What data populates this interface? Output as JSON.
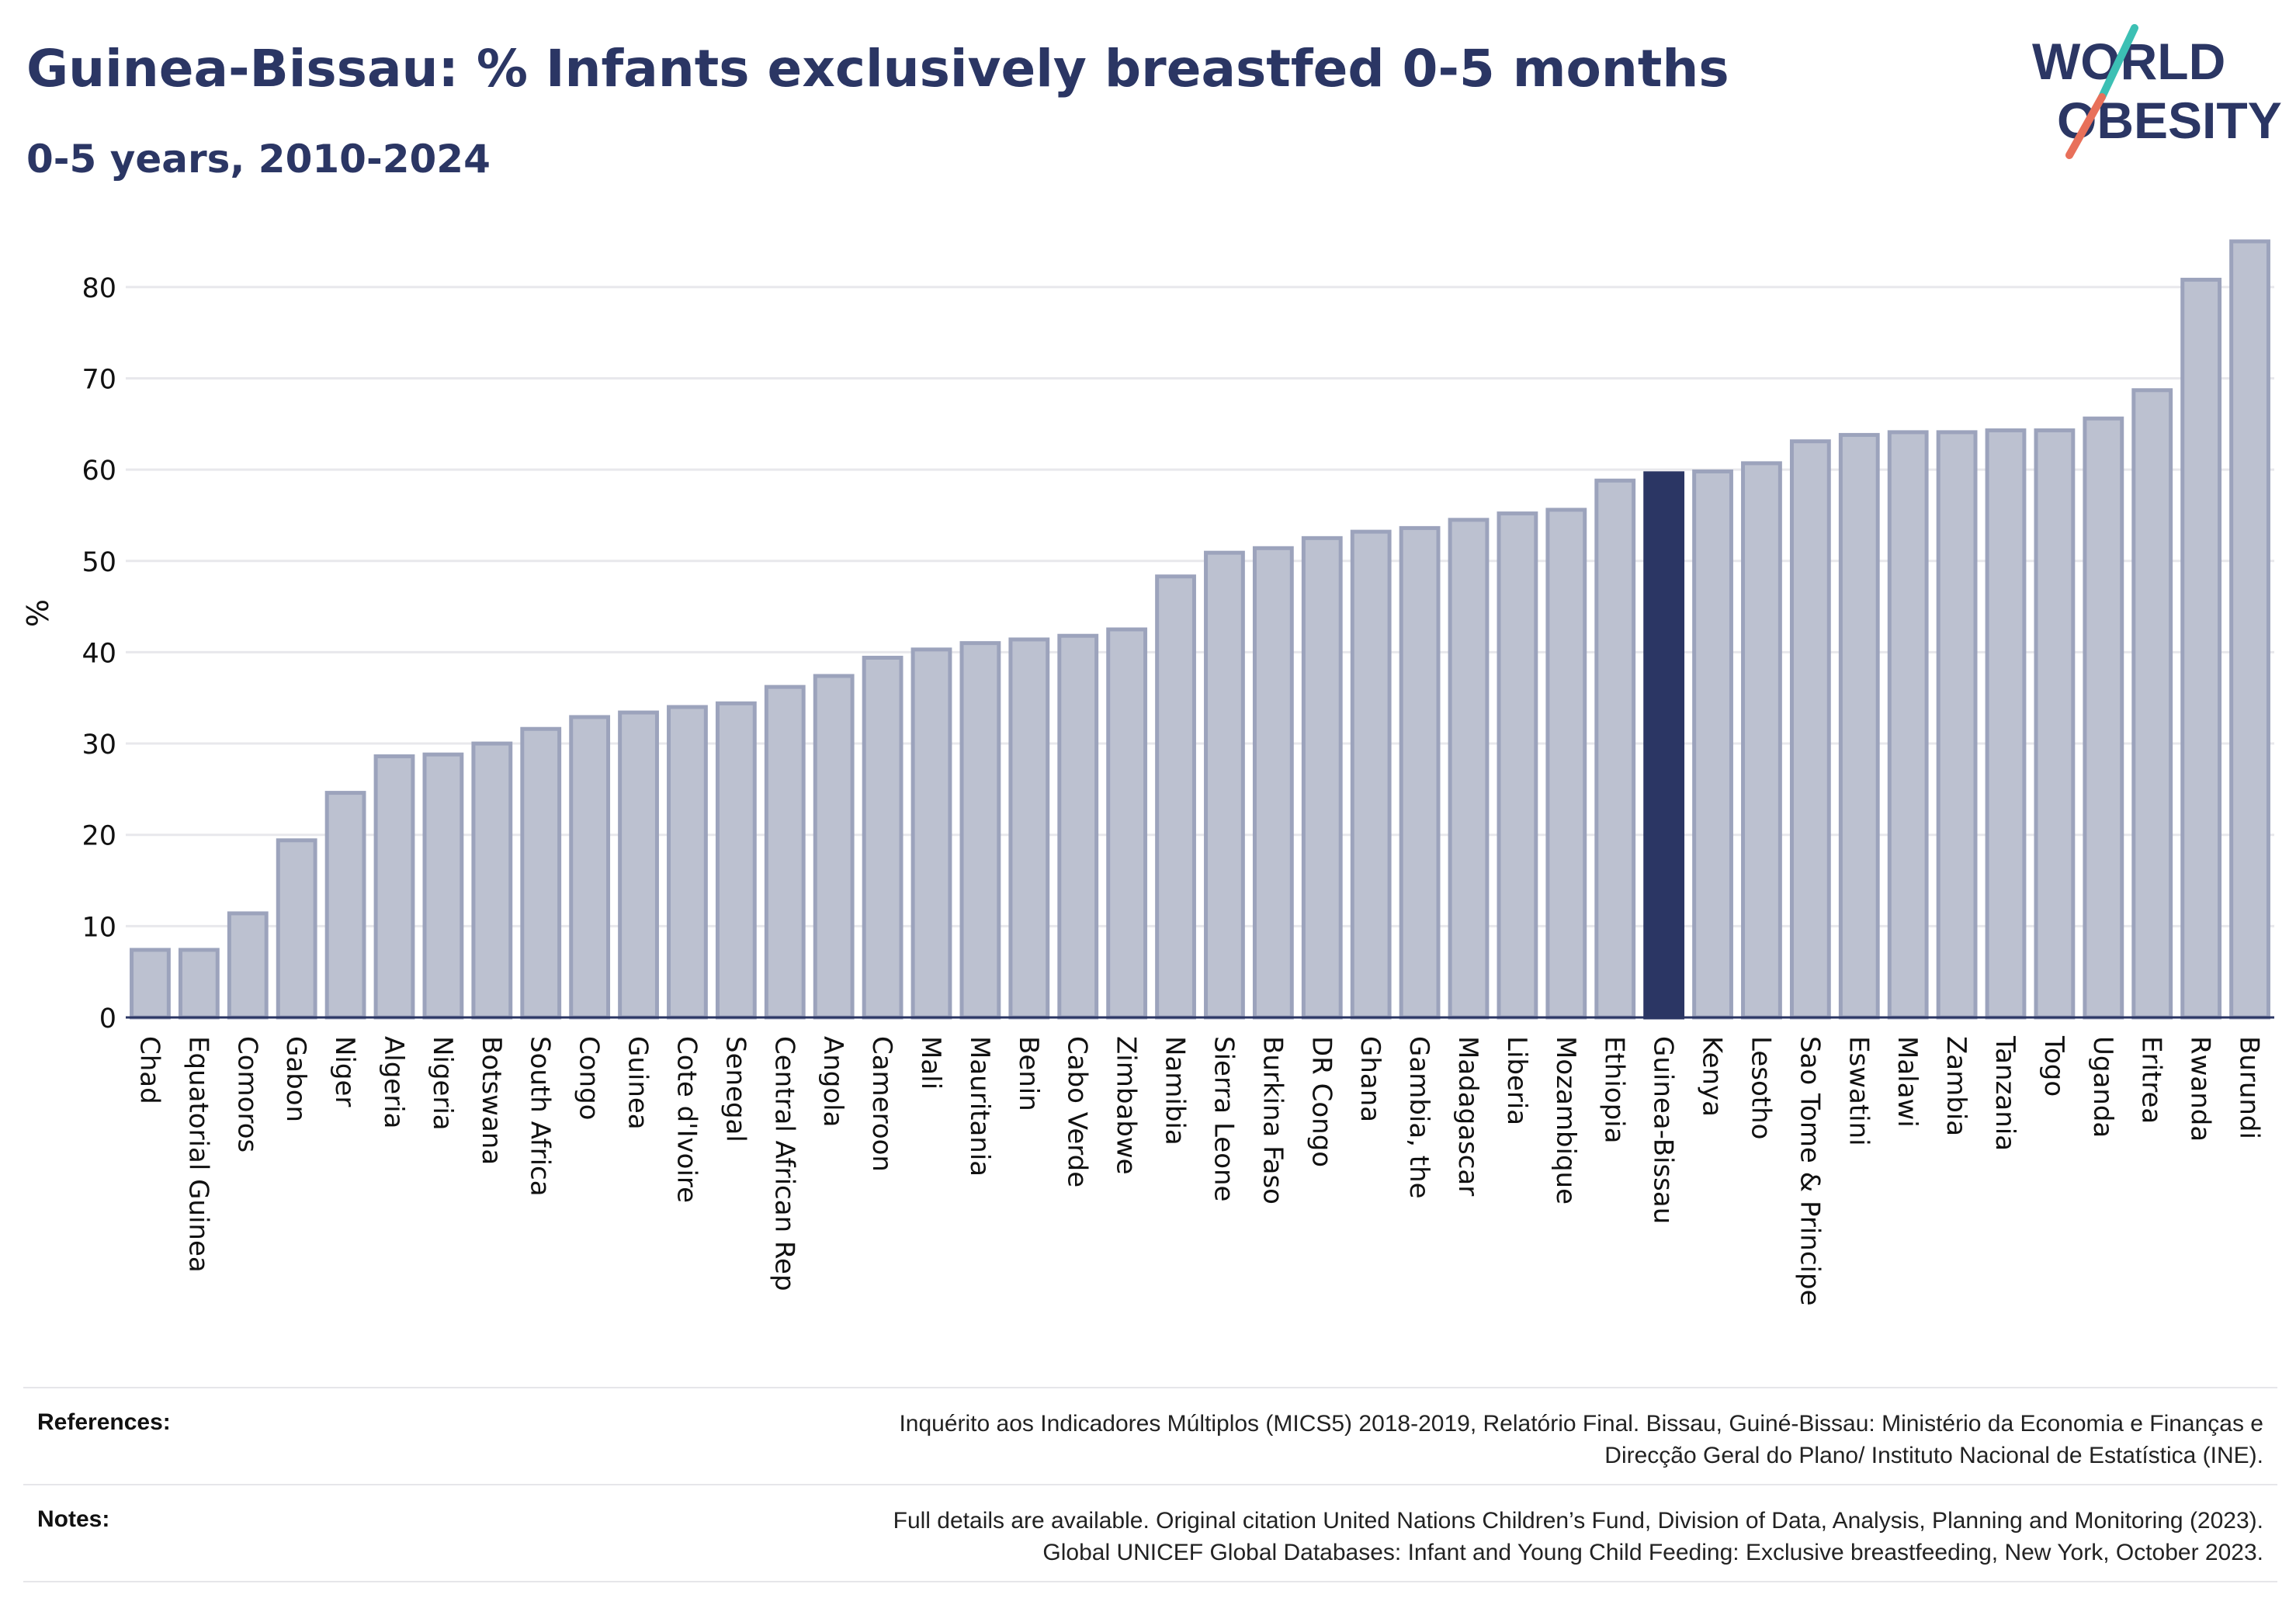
{
  "header": {
    "title": "Guinea-Bissau: % Infants exclusively breastfed 0-5 months",
    "subtitle": "0-5 years, 2010-2024"
  },
  "logo": {
    "line1": "WORLD",
    "line2": "OBESITY",
    "colors": {
      "text": "#2b3664",
      "slash_top": "#3cc0b4",
      "slash_bottom": "#e8705a"
    }
  },
  "chart_data": {
    "type": "bar",
    "ylabel": "%",
    "xlabel": "",
    "ylim": [
      0,
      85
    ],
    "yticks": [
      0,
      10,
      20,
      30,
      40,
      50,
      60,
      70,
      80
    ],
    "grid": true,
    "highlight": "Guinea-Bissau",
    "colors": {
      "bar": "#bcc1d0",
      "bar_edge": "#9ca3bc",
      "highlight": "#2b3664",
      "grid": "#e8e8ec",
      "axis": "#2b3664"
    },
    "categories": [
      "Chad",
      "Equatorial Guinea",
      "Comoros",
      "Gabon",
      "Niger",
      "Algeria",
      "Nigeria",
      "Botswana",
      "South Africa",
      "Congo",
      "Guinea",
      "Cote d'Ivoire",
      "Senegal",
      "Central African Rep",
      "Angola",
      "Cameroon",
      "Mali",
      "Mauritania",
      "Benin",
      "Cabo Verde",
      "Zimbabwe",
      "Namibia",
      "Sierra Leone",
      "Burkina Faso",
      "DR Congo",
      "Ghana",
      "Gambia, the",
      "Madagascar",
      "Liberia",
      "Mozambique",
      "Ethiopia",
      "Guinea-Bissau",
      "Kenya",
      "Lesotho",
      "Sao Tome & Principe",
      "Eswatini",
      "Malawi",
      "Zambia",
      "Tanzania",
      "Togo",
      "Uganda",
      "Eritrea",
      "Rwanda",
      "Burundi"
    ],
    "values": [
      7.4,
      7.4,
      11.4,
      19.4,
      24.6,
      28.6,
      28.8,
      30.0,
      31.6,
      32.9,
      33.4,
      34.0,
      34.4,
      36.2,
      37.4,
      39.4,
      40.3,
      41.0,
      41.4,
      41.8,
      42.5,
      48.3,
      50.9,
      51.4,
      52.5,
      53.2,
      53.6,
      54.5,
      55.2,
      55.6,
      58.8,
      59.6,
      59.8,
      60.7,
      63.1,
      63.8,
      64.1,
      64.1,
      64.3,
      64.3,
      65.6,
      68.7,
      80.8,
      85.0
    ]
  },
  "footer": {
    "references_label": "References:",
    "references_lines": [
      "Inquérito aos Indicadores Múltiplos (MICS5) 2018-2019, Relatório Final. Bissau, Guiné-Bissau: Ministério da Economia e Finanças e",
      "Direcção Geral do Plano/ Instituto Nacional de Estatística (INE)."
    ],
    "notes_label": "Notes:",
    "notes_lines": [
      "Full details are available. Original citation United Nations Children’s Fund, Division of Data, Analysis, Planning and Monitoring (2023).",
      "Global UNICEF Global Databases: Infant and Young Child Feeding: Exclusive breastfeeding, New York, October 2023."
    ]
  }
}
